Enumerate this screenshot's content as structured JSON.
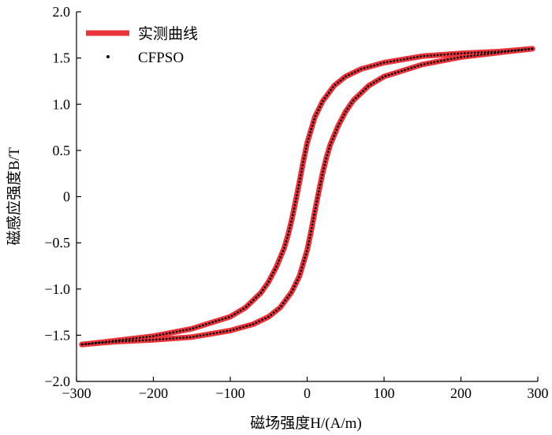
{
  "chart_data": {
    "type": "line",
    "title": "",
    "xlabel": "磁场强度H/(A/m)",
    "ylabel": "磁感应强度B/T",
    "xlim": [
      -300,
      300
    ],
    "ylim": [
      -2.0,
      2.0
    ],
    "x_ticks": [
      -300,
      -200,
      -100,
      0,
      100,
      200,
      300
    ],
    "x_tick_labels": [
      "−300",
      "−200",
      "−100",
      "0",
      "100",
      "200",
      "300"
    ],
    "y_ticks": [
      2.0,
      1.5,
      1.0,
      0.5,
      0,
      -0.5,
      -1.0,
      -1.5,
      -2.0
    ],
    "y_tick_labels": [
      "2.0",
      "1.5",
      "1.0",
      "0.5",
      "0",
      "−0.5",
      "−1.0",
      "−1.5",
      "−2.0"
    ],
    "grid": false,
    "legend_position": "top-left",
    "series": [
      {
        "name": "实测曲线",
        "style": "line",
        "color": "#e8343a",
        "branches": [
          {
            "label": "descending",
            "x": [
              293,
              250,
              200,
              150,
              100,
              70,
              50,
              35,
              20,
              10,
              0,
              -5,
              -10,
              -15,
              -20,
              -25,
              -30,
              -40,
              -50,
              -60,
              -80,
              -100,
              -150,
              -200,
              -250,
              -293
            ],
            "y": [
              1.6,
              1.57,
              1.55,
              1.52,
              1.45,
              1.38,
              1.3,
              1.2,
              1.03,
              0.86,
              0.58,
              0.38,
              0.16,
              -0.05,
              -0.25,
              -0.42,
              -0.56,
              -0.76,
              -0.92,
              -1.04,
              -1.2,
              -1.3,
              -1.43,
              -1.51,
              -1.56,
              -1.6
            ]
          },
          {
            "label": "ascending",
            "x": [
              -293,
              -250,
              -200,
              -150,
              -100,
              -70,
              -50,
              -35,
              -20,
              -10,
              0,
              5,
              10,
              15,
              20,
              25,
              30,
              40,
              50,
              60,
              80,
              100,
              150,
              200,
              250,
              293
            ],
            "y": [
              -1.6,
              -1.57,
              -1.55,
              -1.52,
              -1.45,
              -1.38,
              -1.3,
              -1.2,
              -1.03,
              -0.86,
              -0.58,
              -0.38,
              -0.16,
              0.05,
              0.25,
              0.42,
              0.56,
              0.76,
              0.92,
              1.04,
              1.2,
              1.3,
              1.43,
              1.51,
              1.56,
              1.6
            ]
          }
        ]
      },
      {
        "name": "CFPSO",
        "style": "dotted",
        "color": "#000000"
      }
    ]
  }
}
